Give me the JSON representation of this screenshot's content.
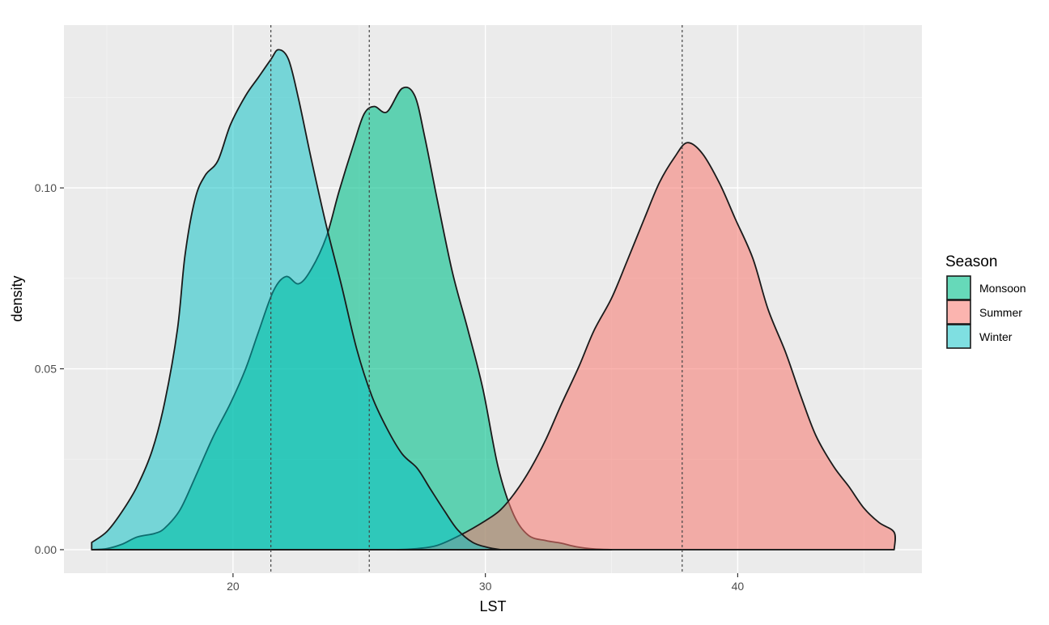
{
  "chart_data": {
    "type": "area",
    "subtype": "density",
    "xlabel": "LST",
    "ylabel": "density",
    "xlim": [
      13.3,
      47.3
    ],
    "ylim": [
      -0.0065,
      0.145
    ],
    "x_ticks": [
      20,
      30,
      40
    ],
    "x_tick_labels": [
      "20",
      "30",
      "40"
    ],
    "y_ticks": [
      0.0,
      0.05,
      0.1
    ],
    "y_tick_labels": [
      "0.00",
      "0.05",
      "0.10"
    ],
    "grid": true,
    "background": "#ebebeb",
    "legend": {
      "title": "Season",
      "position": "right",
      "entries": [
        "Monsoon",
        "Summer",
        "Winter"
      ]
    },
    "series": [
      {
        "name": "Monsoon",
        "color": "#00c08b",
        "fill_opacity": 0.6,
        "mean": 25.4,
        "points": [
          [
            14.4,
            0.0
          ],
          [
            15.0,
            0.0003
          ],
          [
            15.6,
            0.0015
          ],
          [
            16.2,
            0.0035
          ],
          [
            16.9,
            0.0045
          ],
          [
            17.3,
            0.006
          ],
          [
            17.9,
            0.011
          ],
          [
            18.5,
            0.02
          ],
          [
            19.2,
            0.031
          ],
          [
            19.9,
            0.0405
          ],
          [
            20.5,
            0.05
          ],
          [
            21.0,
            0.06
          ],
          [
            21.6,
            0.0715
          ],
          [
            22.1,
            0.0755
          ],
          [
            22.6,
            0.0735
          ],
          [
            23.1,
            0.0775
          ],
          [
            23.7,
            0.0865
          ],
          [
            24.2,
            0.099
          ],
          [
            24.8,
            0.1125
          ],
          [
            25.2,
            0.1205
          ],
          [
            25.6,
            0.1225
          ],
          [
            26.1,
            0.121
          ],
          [
            26.7,
            0.1275
          ],
          [
            27.2,
            0.1255
          ],
          [
            27.6,
            0.114
          ],
          [
            28.1,
            0.0965
          ],
          [
            28.7,
            0.0765
          ],
          [
            29.3,
            0.061
          ],
          [
            29.9,
            0.0445
          ],
          [
            30.5,
            0.023
          ],
          [
            31.1,
            0.01
          ],
          [
            31.7,
            0.004
          ],
          [
            32.4,
            0.0025
          ],
          [
            33.0,
            0.0018
          ],
          [
            33.6,
            0.0008
          ],
          [
            34.3,
            0.0002
          ],
          [
            35.0,
            0.0
          ]
        ]
      },
      {
        "name": "Summer",
        "color": "#f8766d",
        "fill_opacity": 0.55,
        "mean": 37.8,
        "points": [
          [
            26.5,
            0.0
          ],
          [
            27.3,
            0.0003
          ],
          [
            28.1,
            0.0012
          ],
          [
            29.0,
            0.004
          ],
          [
            30.0,
            0.008
          ],
          [
            30.6,
            0.011
          ],
          [
            31.2,
            0.016
          ],
          [
            31.8,
            0.0225
          ],
          [
            32.4,
            0.0305
          ],
          [
            33.0,
            0.04
          ],
          [
            33.7,
            0.0505
          ],
          [
            34.3,
            0.0605
          ],
          [
            35.0,
            0.0695
          ],
          [
            35.6,
            0.0795
          ],
          [
            36.3,
            0.0915
          ],
          [
            36.9,
            0.1015
          ],
          [
            37.5,
            0.1085
          ],
          [
            38.0,
            0.1125
          ],
          [
            38.6,
            0.1095
          ],
          [
            39.3,
            0.101
          ],
          [
            39.9,
            0.0915
          ],
          [
            40.6,
            0.0805
          ],
          [
            41.2,
            0.0665
          ],
          [
            41.9,
            0.0545
          ],
          [
            42.5,
            0.0425
          ],
          [
            43.1,
            0.0315
          ],
          [
            43.8,
            0.023
          ],
          [
            44.4,
            0.0175
          ],
          [
            45.0,
            0.0115
          ],
          [
            45.6,
            0.0075
          ],
          [
            46.2,
            0.0048
          ],
          [
            46.2,
            0.0
          ]
        ]
      },
      {
        "name": "Winter",
        "color": "#00bfc4",
        "fill_opacity": 0.5,
        "mean": 21.5,
        "points": [
          [
            14.4,
            0.002
          ],
          [
            15.0,
            0.005
          ],
          [
            15.6,
            0.0105
          ],
          [
            16.2,
            0.0175
          ],
          [
            16.8,
            0.0275
          ],
          [
            17.3,
            0.041
          ],
          [
            17.8,
            0.061
          ],
          [
            18.1,
            0.0815
          ],
          [
            18.5,
            0.097
          ],
          [
            18.9,
            0.1035
          ],
          [
            19.4,
            0.1075
          ],
          [
            19.9,
            0.1175
          ],
          [
            20.5,
            0.1255
          ],
          [
            21.0,
            0.1305
          ],
          [
            21.5,
            0.1355
          ],
          [
            21.8,
            0.1382
          ],
          [
            22.2,
            0.1355
          ],
          [
            22.6,
            0.1245
          ],
          [
            23.1,
            0.108
          ],
          [
            23.7,
            0.0895
          ],
          [
            24.3,
            0.073
          ],
          [
            24.9,
            0.0555
          ],
          [
            25.5,
            0.0425
          ],
          [
            26.1,
            0.0335
          ],
          [
            26.7,
            0.0265
          ],
          [
            27.3,
            0.0225
          ],
          [
            27.8,
            0.017
          ],
          [
            28.4,
            0.0105
          ],
          [
            28.9,
            0.0055
          ],
          [
            29.5,
            0.002
          ],
          [
            30.1,
            0.0006
          ],
          [
            30.6,
            0.0
          ]
        ]
      }
    ]
  }
}
